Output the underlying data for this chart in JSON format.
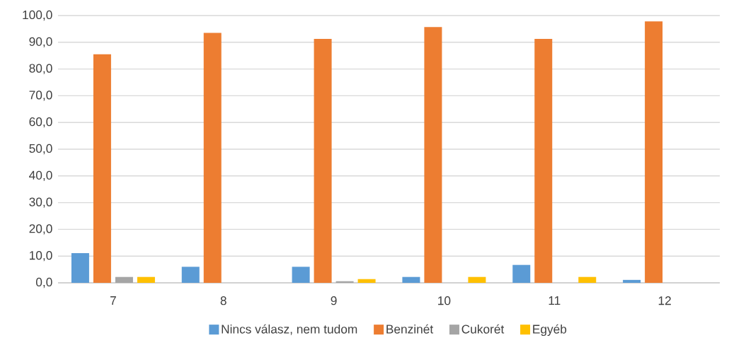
{
  "chart_data": {
    "type": "bar",
    "categories": [
      "7",
      "8",
      "9",
      "10",
      "11",
      "12"
    ],
    "series": [
      {
        "name": "Nincs válasz, nem tudom",
        "color": "#5b9bd5",
        "values": [
          11.1,
          6.0,
          6.0,
          2.2,
          6.7,
          1.1
        ]
      },
      {
        "name": "Benzinét",
        "color": "#ed7d31",
        "values": [
          85.5,
          93.5,
          91.3,
          95.7,
          91.3,
          97.8
        ]
      },
      {
        "name": "Cukorét",
        "color": "#a5a5a5",
        "values": [
          2.2,
          0,
          0.6,
          0,
          0,
          0
        ]
      },
      {
        "name": "Egyéb",
        "color": "#ffc000",
        "values": [
          2.2,
          0,
          1.4,
          2.2,
          2.2,
          0
        ]
      }
    ],
    "ylim": [
      0,
      100
    ],
    "yticks": [
      {
        "value": 0,
        "label": "0,0"
      },
      {
        "value": 10,
        "label": "10,0"
      },
      {
        "value": 20,
        "label": "20,0"
      },
      {
        "value": 30,
        "label": "30,0"
      },
      {
        "value": 40,
        "label": "40,0"
      },
      {
        "value": 50,
        "label": "50,0"
      },
      {
        "value": 60,
        "label": "60,0"
      },
      {
        "value": 70,
        "label": "70,0"
      },
      {
        "value": 80,
        "label": "80,0"
      },
      {
        "value": 90,
        "label": "90,0"
      },
      {
        "value": 100,
        "label": "100,0"
      }
    ],
    "grid": "y",
    "legend": "bottom"
  }
}
